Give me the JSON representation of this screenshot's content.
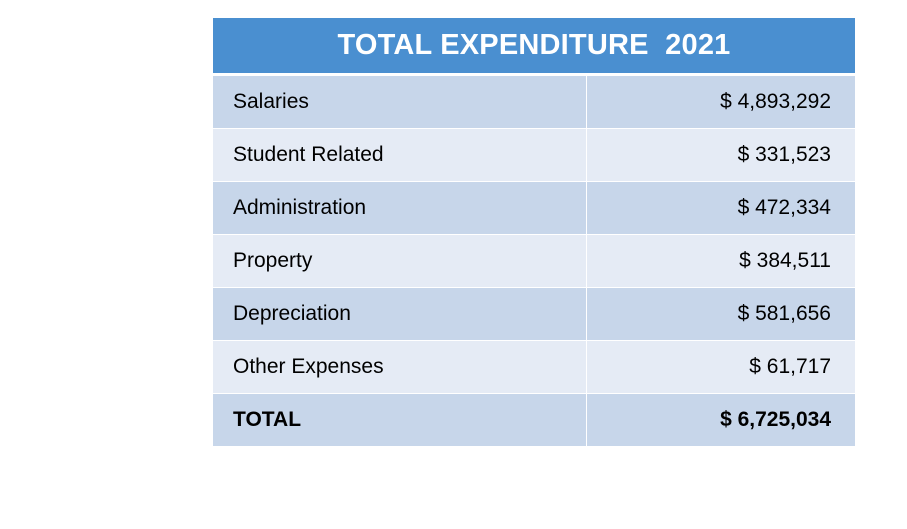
{
  "table": {
    "title": "TOTAL EXPENDITURE  2021",
    "rows": [
      {
        "label": "Salaries",
        "value": "$ 4,893,292"
      },
      {
        "label": "Student Related",
        "value": "$ 331,523"
      },
      {
        "label": "Administration",
        "value": "$ 472,334"
      },
      {
        "label": "Property",
        "value": "$ 384,511"
      },
      {
        "label": "Depreciation",
        "value": "$ 581,656"
      },
      {
        "label": "Other Expenses",
        "value": "$ 61,717"
      }
    ],
    "total": {
      "label": "TOTAL",
      "value": "$ 6,725,034"
    }
  },
  "colors": {
    "header": "#4a8fd0",
    "row_dark": "#c7d6ea",
    "row_light": "#e5ebf5"
  }
}
